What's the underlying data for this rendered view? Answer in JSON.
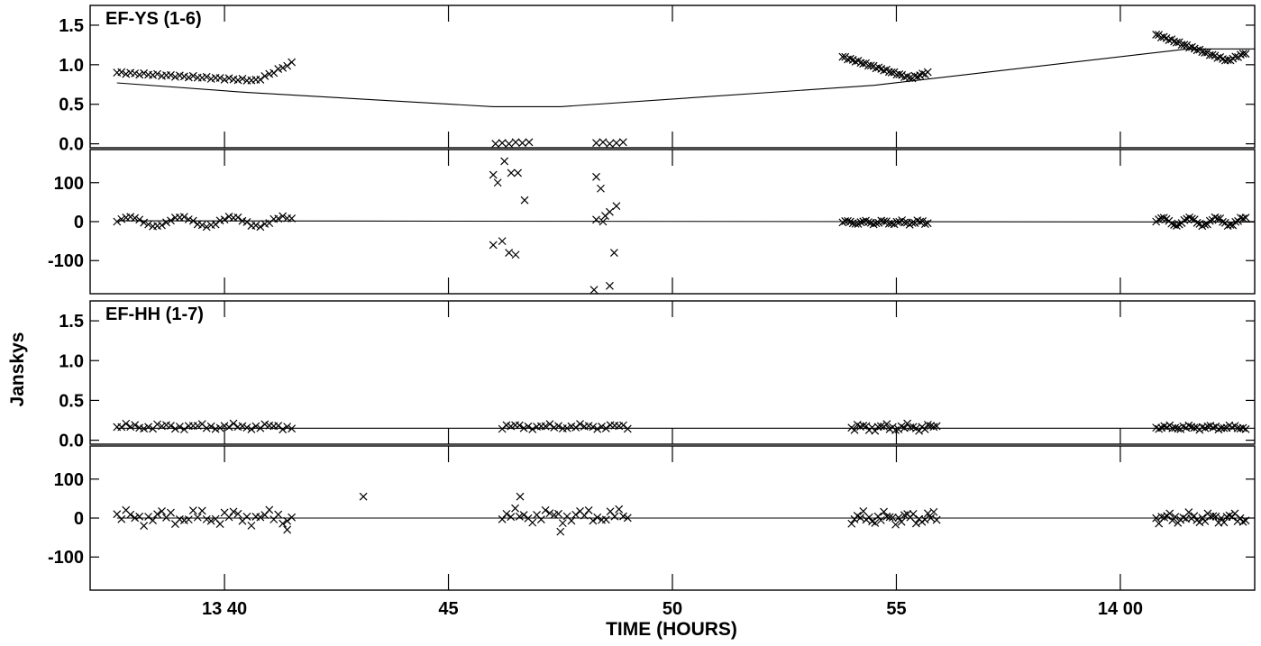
{
  "chart_data": {
    "type": "scatter",
    "xlabel": "TIME (HOURS)",
    "ylabel": "Janskys",
    "xlim": [
      817.0,
      843.0
    ],
    "x_units": "minutes after 00:00 (13:37 - 14:03)",
    "x_ticks": [
      {
        "value": 820,
        "label": "13 40"
      },
      {
        "value": 825,
        "label": "45"
      },
      {
        "value": 830,
        "label": "50"
      },
      {
        "value": 835,
        "label": "55"
      },
      {
        "value": 840,
        "label": "14 00"
      }
    ],
    "panels": [
      {
        "title": "EF-YS (1-6)",
        "amplitude": {
          "ylim": [
            -0.05,
            1.75
          ],
          "yticks": [
            "1.5",
            "1.0",
            "0.5",
            "0.0"
          ],
          "ytick_values": [
            1.5,
            1.0,
            0.5,
            0.0
          ],
          "model": [
            [
              817.6,
              0.77
            ],
            [
              820.5,
              0.65
            ],
            [
              826.0,
              0.47
            ],
            [
              827.5,
              0.47
            ],
            [
              834.5,
              0.74
            ],
            [
              841.5,
              1.2
            ],
            [
              843.0,
              1.2
            ]
          ],
          "segments": [
            {
              "x0": 817.6,
              "x1": 821.5,
              "n": 40,
              "shape": "fall_rise",
              "a": 0.9,
              "b": 0.8,
              "c": 1.02
            },
            {
              "x0": 833.8,
              "x1": 835.7,
              "n": 34,
              "shape": "fall_rise",
              "a": 1.1,
              "b": 0.83,
              "c": 0.9
            },
            {
              "x0": 840.8,
              "x1": 842.8,
              "n": 36,
              "shape": "fall_rise",
              "a": 1.38,
              "b": 1.05,
              "c": 1.15
            }
          ],
          "points": [
            [
              826.05,
              0.0
            ],
            [
              826.2,
              0.01
            ],
            [
              826.35,
              0.0
            ],
            [
              826.5,
              0.02
            ],
            [
              826.65,
              0.01
            ],
            [
              826.8,
              0.02
            ],
            [
              828.3,
              0.01
            ],
            [
              828.45,
              0.02
            ],
            [
              828.6,
              0.0
            ],
            [
              828.75,
              0.01
            ],
            [
              828.9,
              0.02
            ]
          ]
        },
        "phase": {
          "ylim": [
            -185,
            185
          ],
          "yticks": [
            "100",
            "0",
            "-100"
          ],
          "ytick_values": [
            100,
            0,
            -100
          ],
          "model": [
            [
              817.6,
              2.0
            ],
            [
              843.0,
              -1.0
            ]
          ],
          "segments": [
            {
              "x0": 817.6,
              "x1": 821.5,
              "n": 40,
              "shape": "wave",
              "a": 0.0,
              "b": 12.0,
              "c": 0.55
            },
            {
              "x0": 833.8,
              "x1": 835.7,
              "n": 34,
              "shape": "wave",
              "a": -2.0,
              "b": 4.0,
              "c": 0.9
            },
            {
              "x0": 840.8,
              "x1": 842.8,
              "n": 36,
              "shape": "wave",
              "a": 0.0,
              "b": 10.0,
              "c": 0.6
            }
          ],
          "points": [
            [
              826.0,
              120
            ],
            [
              826.1,
              100
            ],
            [
              826.25,
              155
            ],
            [
              826.4,
              125
            ],
            [
              826.55,
              125
            ],
            [
              826.7,
              55
            ],
            [
              826.0,
              -60
            ],
            [
              826.2,
              -50
            ],
            [
              826.35,
              -80
            ],
            [
              826.5,
              -85
            ],
            [
              828.3,
              115
            ],
            [
              828.4,
              85
            ],
            [
              828.5,
              15
            ],
            [
              828.6,
              25
            ],
            [
              828.75,
              40
            ],
            [
              828.3,
              5
            ],
            [
              828.45,
              0
            ],
            [
              828.7,
              -80
            ],
            [
              828.25,
              -175
            ],
            [
              828.6,
              -165
            ]
          ]
        }
      },
      {
        "title": "EF-HH (1-7)",
        "amplitude": {
          "ylim": [
            -0.05,
            1.75
          ],
          "yticks": [
            "1.5",
            "1.0",
            "0.5",
            "0.0"
          ],
          "ytick_values": [
            1.5,
            1.0,
            0.5,
            0.0
          ],
          "model": [
            [
              817.6,
              0.15
            ],
            [
              843.0,
              0.15
            ]
          ],
          "segments": [
            {
              "x0": 817.6,
              "x1": 821.5,
              "n": 40,
              "shape": "noise",
              "a": 0.17,
              "b": 0.04,
              "c": 1.3
            },
            {
              "x0": 826.2,
              "x1": 829.0,
              "n": 30,
              "shape": "noise",
              "a": 0.17,
              "b": 0.035,
              "c": 2.1
            },
            {
              "x0": 834.0,
              "x1": 835.9,
              "n": 30,
              "shape": "noise",
              "a": 0.16,
              "b": 0.05,
              "c": 3.7
            },
            {
              "x0": 840.8,
              "x1": 842.8,
              "n": 34,
              "shape": "noise",
              "a": 0.16,
              "b": 0.03,
              "c": 5.9
            }
          ],
          "points": []
        },
        "phase": {
          "ylim": [
            -185,
            185
          ],
          "yticks": [
            "100",
            "0",
            "-100"
          ],
          "ytick_values": [
            100,
            0,
            -100
          ],
          "model": [
            [
              817.6,
              0.0
            ],
            [
              843.0,
              0.0
            ]
          ],
          "segments": [
            {
              "x0": 817.6,
              "x1": 821.5,
              "n": 40,
              "shape": "noise",
              "a": 2.0,
              "b": 22.0,
              "c": 0.8
            },
            {
              "x0": 826.2,
              "x1": 829.0,
              "n": 30,
              "shape": "noise",
              "a": 5.0,
              "b": 20.0,
              "c": 2.7
            },
            {
              "x0": 834.0,
              "x1": 835.9,
              "n": 30,
              "shape": "noise",
              "a": 0.0,
              "b": 18.0,
              "c": 4.4
            },
            {
              "x0": 840.8,
              "x1": 842.8,
              "n": 34,
              "shape": "noise",
              "a": 0.0,
              "b": 15.0,
              "c": 6.3
            }
          ],
          "points": [
            [
              821.4,
              -30
            ],
            [
              823.1,
              55
            ],
            [
              826.6,
              55
            ],
            [
              827.5,
              -35
            ]
          ]
        }
      }
    ]
  }
}
